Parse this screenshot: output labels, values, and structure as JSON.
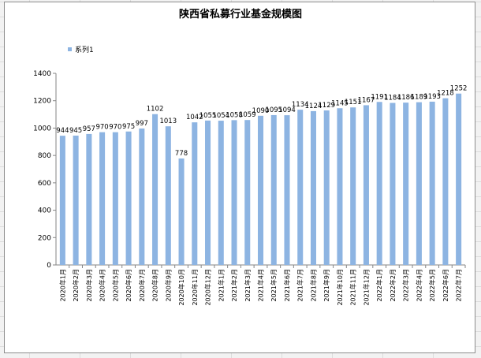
{
  "chart_data": {
    "type": "bar",
    "title": "陕西省私募行业基金规模图",
    "legend": {
      "position": "top-left",
      "entries": [
        "系列1"
      ]
    },
    "ylim": [
      0,
      1400
    ],
    "yticks": [
      0,
      200,
      400,
      600,
      800,
      1000,
      1200,
      1400
    ],
    "grid": false,
    "bar_color": "#8db4e2",
    "categories": [
      "2020年1月",
      "2020年2月",
      "2020年3月",
      "2020年4月",
      "2020年5月",
      "2020年6月",
      "2020年7月",
      "2020年8月",
      "2020年9月",
      "2020年10月",
      "2020年11月",
      "2020年12月",
      "2021年1月",
      "2021年2月",
      "2021年3月",
      "2021年4月",
      "2021年5月",
      "2021年6月",
      "2021年7月",
      "2021年8月",
      "2021年9月",
      "2021年10月",
      "2021年11月",
      "2021年12月",
      "2022年1月",
      "2022年2月",
      "2022年3月",
      "2022年4月",
      "2022年5月",
      "2022年6月",
      "2022年7月"
    ],
    "series": [
      {
        "name": "系列1",
        "values": [
          944,
          945,
          957,
          970,
          970,
          975,
          997,
          1102,
          1013,
          778,
          1042,
          1055,
          1054,
          1058,
          1059,
          1090,
          1095,
          1094,
          1134,
          1124,
          1129,
          1145,
          1151,
          1167,
          1191,
          1184,
          1186,
          1189,
          1193,
          1218,
          1252
        ]
      }
    ]
  }
}
